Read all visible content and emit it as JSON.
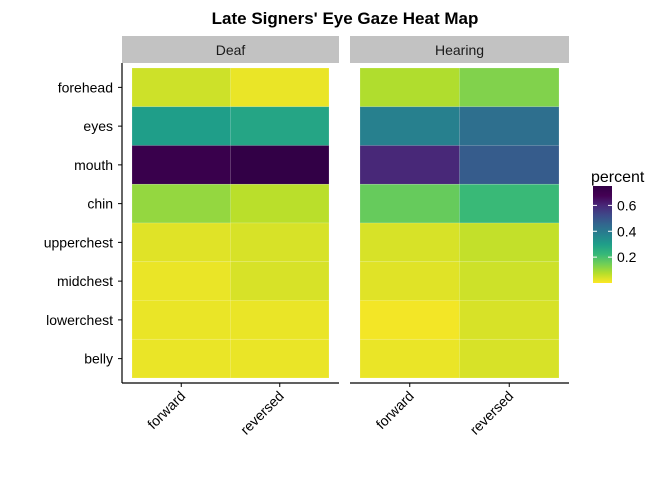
{
  "chart_data": {
    "type": "heatmap",
    "title": "Late Signers' Eye Gaze Heat Map",
    "xlabel": "",
    "ylabel": "",
    "panels": [
      "Deaf",
      "Hearing"
    ],
    "x": [
      "forward",
      "reversed"
    ],
    "y": [
      "forehead",
      "eyes",
      "mouth",
      "chin",
      "upperchest",
      "midchest",
      "lowerchest",
      "belly"
    ],
    "values": {
      "Deaf": {
        "forward": [
          0.05,
          0.3,
          0.72,
          0.11,
          0.03,
          0.02,
          0.02,
          0.02
        ],
        "reversed": [
          0.02,
          0.28,
          0.75,
          0.07,
          0.04,
          0.04,
          0.02,
          0.02
        ]
      },
      "Hearing": {
        "forward": [
          0.08,
          0.38,
          0.6,
          0.16,
          0.04,
          0.03,
          0.01,
          0.02
        ],
        "reversed": [
          0.13,
          0.43,
          0.48,
          0.22,
          0.06,
          0.05,
          0.04,
          0.04
        ]
      }
    },
    "legend": {
      "title": "percent",
      "ticks": [
        0.2,
        0.4,
        0.6
      ],
      "range": [
        0,
        0.75
      ],
      "placement": "right"
    },
    "colorscale": "viridis (reversed)",
    "grid": false
  }
}
